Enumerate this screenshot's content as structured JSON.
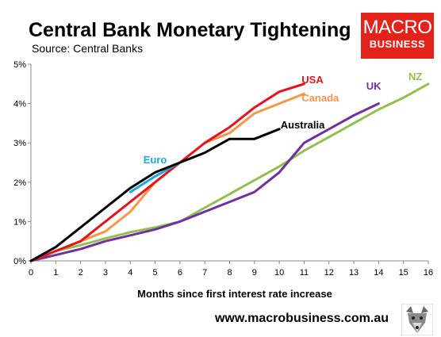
{
  "header": {
    "title": "Central Bank Monetary Tightening",
    "subtitle": "Source: Central Banks"
  },
  "logo": {
    "line1": "MACRO",
    "line2": "BUSINESS",
    "color": "#e2231a"
  },
  "footer": {
    "url": "www.macrobusiness.com.au",
    "mascot_icon": "wolf-icon"
  },
  "chart_data": {
    "type": "line",
    "title": "Central Bank Monetary Tightening",
    "xlabel": "Months since first interest rate increase",
    "ylabel": "",
    "xlim": [
      0,
      16
    ],
    "ylim": [
      0,
      5
    ],
    "x_ticks": [
      0,
      1,
      2,
      3,
      4,
      5,
      6,
      7,
      8,
      9,
      10,
      11,
      12,
      13,
      14,
      15,
      16
    ],
    "x_tick_labels": [
      "0",
      "1",
      "2",
      "3",
      "4",
      "5",
      "6",
      "7",
      "8",
      "9",
      "10",
      "11",
      "12",
      "13",
      "14",
      "15",
      "16"
    ],
    "y_ticks": [
      0,
      1,
      2,
      3,
      4,
      5
    ],
    "y_tick_labels": [
      "0%",
      "1%",
      "2%",
      "3%",
      "4%",
      "5%"
    ],
    "grid": false,
    "legend": "inline-labels",
    "series": [
      {
        "name": "NZ",
        "color": "#92c050",
        "x": [
          0,
          1,
          2,
          3,
          4,
          5,
          6,
          7,
          8,
          9,
          10,
          11,
          12,
          13,
          14,
          15,
          16
        ],
        "y": [
          0,
          0.25,
          0.4,
          0.57,
          0.73,
          0.85,
          1.0,
          1.35,
          1.7,
          2.05,
          2.4,
          2.8,
          3.15,
          3.5,
          3.85,
          4.15,
          4.5
        ]
      },
      {
        "name": "UK",
        "color": "#7030a0",
        "x": [
          0,
          1,
          2,
          3,
          4,
          5,
          6,
          7,
          8,
          9,
          10,
          11,
          12,
          13,
          14
        ],
        "y": [
          0,
          0.15,
          0.3,
          0.5,
          0.65,
          0.8,
          1.0,
          1.25,
          1.5,
          1.75,
          2.25,
          3.0,
          3.35,
          3.7,
          4.0
        ]
      },
      {
        "name": "Canada",
        "color": "#f79646",
        "x": [
          0,
          1,
          2,
          3,
          4,
          5,
          6,
          7,
          8,
          9,
          10,
          11
        ],
        "y": [
          0,
          0.25,
          0.5,
          0.75,
          1.25,
          2.0,
          2.5,
          3.0,
          3.25,
          3.75,
          4.0,
          4.25
        ]
      },
      {
        "name": "USA",
        "color": "#e8121a",
        "x": [
          0,
          1,
          2,
          3,
          4,
          5,
          6,
          7,
          8,
          9,
          10,
          11
        ],
        "y": [
          0,
          0.25,
          0.5,
          1.0,
          1.5,
          2.0,
          2.5,
          3.0,
          3.4,
          3.9,
          4.3,
          4.5
        ]
      },
      {
        "name": "Euro",
        "color": "#22a8d8",
        "x": [
          4,
          5,
          6
        ],
        "y": [
          1.75,
          2.15,
          2.5
        ]
      },
      {
        "name": "Australia",
        "color": "#000000",
        "x": [
          0,
          1,
          2,
          3,
          4,
          5,
          6,
          7,
          8,
          9,
          10
        ],
        "y": [
          0,
          0.35,
          0.85,
          1.35,
          1.85,
          2.25,
          2.5,
          2.75,
          3.1,
          3.1,
          3.35
        ]
      }
    ],
    "label_positions": {
      "NZ": [
        15.2,
        4.6
      ],
      "UK": [
        13.5,
        4.35
      ],
      "Canada": [
        10.9,
        4.05
      ],
      "USA": [
        10.9,
        4.52
      ],
      "Euro": [
        5.0,
        2.48
      ],
      "Australia": [
        10.05,
        3.37
      ]
    }
  }
}
